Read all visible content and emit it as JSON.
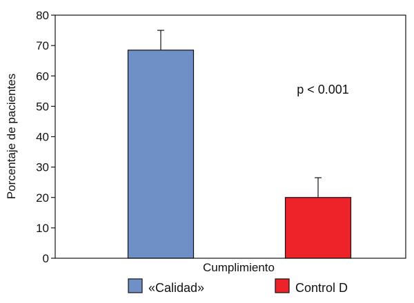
{
  "chart_data": {
    "type": "bar",
    "categories": [
      "«Calidad»",
      "Control D"
    ],
    "values": [
      68.5,
      20
    ],
    "error_upper": [
      75,
      26.5
    ],
    "colors": [
      "#6f8fc7",
      "#ee2229"
    ],
    "ylabel": "Porcentaje de pacientes",
    "xlabel": "Cumplimiento",
    "ylim": [
      0,
      80
    ],
    "yticks": [
      0,
      10,
      20,
      30,
      40,
      50,
      60,
      70,
      80
    ],
    "annotation": "p < 0.001",
    "legend_position": "bottom",
    "grid": false
  }
}
